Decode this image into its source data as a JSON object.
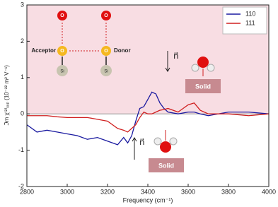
{
  "chart_data": {
    "type": "line",
    "xlabel": "Frequency (cm⁻¹)",
    "ylabel": "ℑm χ⁽²⁾ₓₓₚ (10⁻²² m² V⁻¹)",
    "x": [
      2800,
      2850,
      2900,
      2950,
      3000,
      3050,
      3100,
      3150,
      3200,
      3250,
      3280,
      3300,
      3320,
      3340,
      3360,
      3380,
      3400,
      3420,
      3440,
      3460,
      3480,
      3500,
      3550,
      3600,
      3630,
      3660,
      3700,
      3800,
      3900,
      4000
    ],
    "series": [
      {
        "name": "110",
        "color": "#1a1aa0",
        "values": [
          -0.3,
          -0.5,
          -0.45,
          -0.5,
          -0.55,
          -0.6,
          -0.7,
          -0.65,
          -0.75,
          -0.85,
          -0.65,
          -0.8,
          -0.6,
          -0.2,
          0.15,
          0.2,
          0.4,
          0.6,
          0.55,
          0.3,
          0.15,
          0.05,
          0.0,
          0.05,
          0.05,
          0.0,
          -0.05,
          0.05,
          0.05,
          0.0
        ]
      },
      {
        "name": "111",
        "color": "#d02020",
        "values": [
          -0.05,
          -0.05,
          -0.05,
          -0.08,
          -0.1,
          -0.1,
          -0.1,
          -0.15,
          -0.2,
          -0.4,
          -0.45,
          -0.5,
          -0.4,
          -0.3,
          -0.1,
          0.05,
          0.0,
          0.0,
          0.05,
          0.1,
          0.12,
          0.15,
          0.05,
          0.25,
          0.3,
          0.1,
          0.0,
          0.0,
          -0.05,
          0.0
        ]
      }
    ],
    "xlim": [
      2800,
      4000
    ],
    "xticks": [
      2800,
      3000,
      3200,
      3400,
      3600,
      3800,
      4000
    ],
    "ylim": [
      -2,
      3
    ],
    "yticks": [
      -2,
      -1,
      0,
      1,
      2,
      3
    ],
    "shade_above_zero": "#f8dde3",
    "legend": "upper right",
    "annotations": {
      "acceptor": "Acceptor",
      "donor": "Donor",
      "oxygen": "O",
      "silicon": "Si",
      "solid": "Solid",
      "normal": "n⃗"
    }
  }
}
